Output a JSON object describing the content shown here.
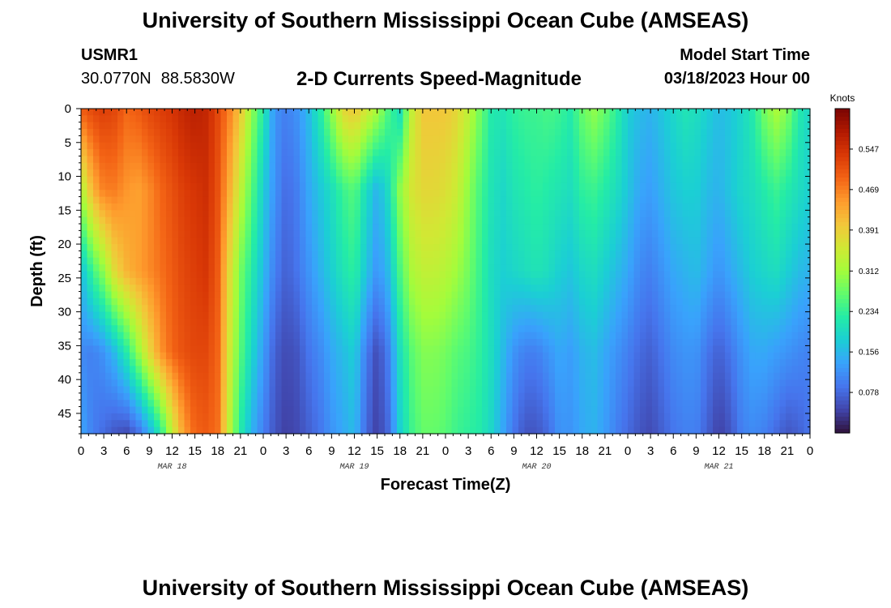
{
  "header": {
    "title": "University of Southern Mississippi Ocean Cube (AMSEAS)",
    "station_id": "USMR1",
    "latitude": "30.0770N",
    "longitude": "88.5830W",
    "subtitle": "2-D Currents Speed-Magnitude",
    "model_start_label": "Model Start Time",
    "model_start_value": "03/18/2023 Hour 00"
  },
  "footer": {
    "title": "University of Southern Mississippi Ocean Cube (AMSEAS)"
  },
  "chart_data": {
    "type": "heatmap",
    "title": "2-D Currents Speed-Magnitude",
    "xlabel": "Forecast Time(Z)",
    "ylabel": "Depth (ft)",
    "x_ticks": [
      "0",
      "3",
      "6",
      "9",
      "12",
      "15",
      "18",
      "21",
      "0",
      "3",
      "6",
      "9",
      "12",
      "15",
      "18",
      "21",
      "0",
      "3",
      "6",
      "9",
      "12",
      "15",
      "18",
      "21",
      "0",
      "3",
      "6",
      "9",
      "12",
      "15",
      "18",
      "21",
      "0"
    ],
    "x_range_hours": [
      0,
      96
    ],
    "date_labels": [
      {
        "label": "MAR 18",
        "hour": 12
      },
      {
        "label": "MAR 19",
        "hour": 36
      },
      {
        "label": "MAR 20",
        "hour": 60
      },
      {
        "label": "MAR 21",
        "hour": 84
      }
    ],
    "y_ticks": [
      "0",
      "5",
      "10",
      "15",
      "20",
      "25",
      "30",
      "35",
      "40",
      "45"
    ],
    "y_range_ft": [
      0,
      48
    ],
    "colorbar": {
      "label": "Knots",
      "range": [
        0,
        0.625
      ],
      "ticks": [
        "0.547",
        "0.469",
        "0.391",
        "0.312",
        "0.234",
        "0.156",
        "0.078"
      ],
      "colors": [
        "#30123b",
        "#4145ab",
        "#4675ed",
        "#39a2fc",
        "#1bcfd4",
        "#24eca6",
        "#61fc6c",
        "#a4fc3b",
        "#d1e834",
        "#f3c63a",
        "#fe9b2d",
        "#f36315",
        "#d93806",
        "#b11901",
        "#7a0403"
      ]
    },
    "speed_profiles_knots": {
      "depths_ft": [
        0,
        12,
        24,
        36,
        48
      ],
      "hours": [
        0,
        1.5,
        3,
        4.5,
        6,
        7.5,
        9,
        10.5,
        12,
        13.5,
        15,
        16.5,
        18,
        19.5,
        21,
        22.5,
        24,
        25.5,
        27,
        28.5,
        30,
        31.5,
        33,
        34.5,
        36,
        37.5,
        39,
        40.5,
        42,
        43.5,
        45,
        46.5,
        48,
        49.5,
        51,
        52.5,
        54,
        55.5,
        57,
        58.5,
        60,
        61.5,
        63,
        64.5,
        66,
        67.5,
        69,
        70.5,
        72,
        73.5,
        75,
        76.5,
        78,
        79.5,
        81,
        82.5,
        84,
        85.5,
        87,
        88.5,
        90,
        91.5,
        93,
        94.5,
        96
      ],
      "values": [
        [
          0.5,
          0.52,
          0.53,
          0.52,
          0.49,
          0.5,
          0.52,
          0.53,
          0.54,
          0.56,
          0.57,
          0.56,
          0.52,
          0.47,
          0.4,
          0.3,
          0.22,
          0.12,
          0.1,
          0.12,
          0.16,
          0.22,
          0.3,
          0.38,
          0.4,
          0.36,
          0.32,
          0.25,
          0.2,
          0.34,
          0.4,
          0.4,
          0.4,
          0.38,
          0.34,
          0.28,
          0.22,
          0.21,
          0.23,
          0.24,
          0.24,
          0.25,
          0.24,
          0.22,
          0.27,
          0.3,
          0.27,
          0.23,
          0.18,
          0.16,
          0.15,
          0.17,
          0.19,
          0.21,
          0.2,
          0.18,
          0.16,
          0.17,
          0.19,
          0.22,
          0.28,
          0.32,
          0.29,
          0.22,
          0.19
        ],
        [
          0.32,
          0.42,
          0.47,
          0.47,
          0.45,
          0.44,
          0.46,
          0.49,
          0.51,
          0.53,
          0.54,
          0.55,
          0.51,
          0.43,
          0.34,
          0.26,
          0.18,
          0.12,
          0.08,
          0.1,
          0.14,
          0.17,
          0.2,
          0.24,
          0.26,
          0.2,
          0.15,
          0.2,
          0.3,
          0.36,
          0.38,
          0.38,
          0.37,
          0.35,
          0.3,
          0.25,
          0.21,
          0.19,
          0.21,
          0.22,
          0.23,
          0.22,
          0.21,
          0.2,
          0.23,
          0.24,
          0.22,
          0.2,
          0.17,
          0.14,
          0.13,
          0.15,
          0.17,
          0.18,
          0.18,
          0.16,
          0.15,
          0.17,
          0.19,
          0.2,
          0.22,
          0.24,
          0.22,
          0.2,
          0.18
        ],
        [
          0.16,
          0.24,
          0.3,
          0.38,
          0.42,
          0.44,
          0.46,
          0.48,
          0.5,
          0.52,
          0.53,
          0.54,
          0.5,
          0.38,
          0.28,
          0.22,
          0.16,
          0.1,
          0.07,
          0.09,
          0.12,
          0.15,
          0.18,
          0.21,
          0.23,
          0.17,
          0.12,
          0.16,
          0.25,
          0.32,
          0.34,
          0.34,
          0.33,
          0.31,
          0.28,
          0.24,
          0.2,
          0.18,
          0.19,
          0.2,
          0.21,
          0.2,
          0.18,
          0.17,
          0.19,
          0.2,
          0.18,
          0.16,
          0.14,
          0.11,
          0.1,
          0.12,
          0.14,
          0.15,
          0.16,
          0.14,
          0.12,
          0.14,
          0.16,
          0.18,
          0.19,
          0.2,
          0.18,
          0.16,
          0.15
        ],
        [
          0.11,
          0.1,
          0.12,
          0.16,
          0.22,
          0.3,
          0.38,
          0.45,
          0.49,
          0.51,
          0.52,
          0.52,
          0.49,
          0.36,
          0.26,
          0.19,
          0.13,
          0.07,
          0.05,
          0.06,
          0.09,
          0.11,
          0.14,
          0.16,
          0.18,
          0.1,
          0.05,
          0.1,
          0.2,
          0.26,
          0.29,
          0.29,
          0.28,
          0.26,
          0.25,
          0.23,
          0.2,
          0.16,
          0.12,
          0.1,
          0.1,
          0.12,
          0.14,
          0.13,
          0.15,
          0.16,
          0.14,
          0.12,
          0.1,
          0.08,
          0.07,
          0.09,
          0.11,
          0.12,
          0.12,
          0.09,
          0.07,
          0.09,
          0.12,
          0.14,
          0.14,
          0.13,
          0.12,
          0.11,
          0.1
        ],
        [
          0.14,
          0.1,
          0.08,
          0.06,
          0.05,
          0.08,
          0.14,
          0.22,
          0.34,
          0.44,
          0.49,
          0.5,
          0.48,
          0.34,
          0.22,
          0.15,
          0.1,
          0.06,
          0.04,
          0.05,
          0.07,
          0.09,
          0.12,
          0.14,
          0.16,
          0.08,
          0.04,
          0.08,
          0.18,
          0.24,
          0.27,
          0.27,
          0.26,
          0.24,
          0.23,
          0.22,
          0.19,
          0.14,
          0.09,
          0.06,
          0.06,
          0.08,
          0.12,
          0.12,
          0.14,
          0.15,
          0.13,
          0.1,
          0.08,
          0.06,
          0.05,
          0.07,
          0.09,
          0.1,
          0.1,
          0.07,
          0.04,
          0.06,
          0.1,
          0.11,
          0.1,
          0.08,
          0.06,
          0.07,
          0.09
        ]
      ]
    }
  }
}
